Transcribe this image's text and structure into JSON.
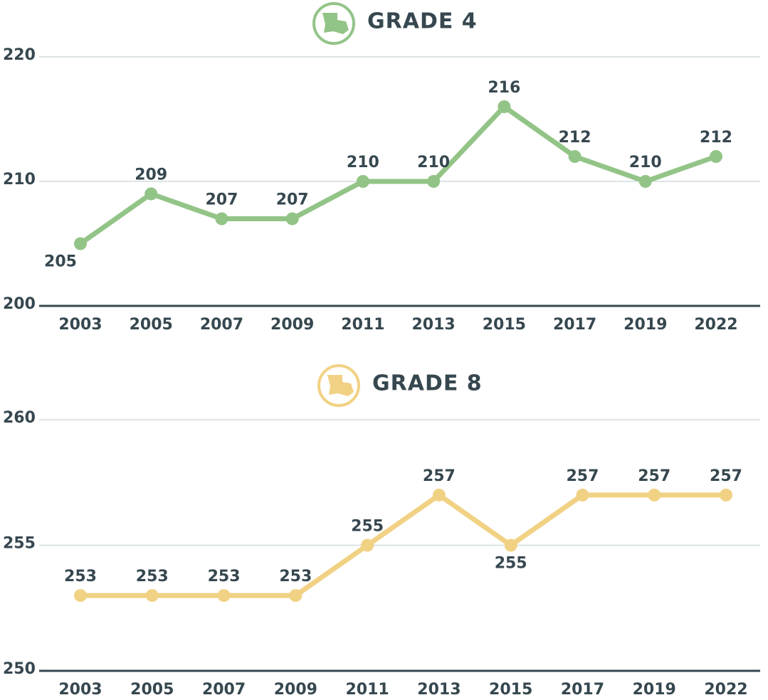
{
  "chart_data": [
    {
      "type": "line",
      "title": "GRADE 4",
      "categories": [
        "2003",
        "2005",
        "2007",
        "2009",
        "2011",
        "2013",
        "2015",
        "2017",
        "2019",
        "2022"
      ],
      "values": [
        205,
        209,
        207,
        207,
        210,
        210,
        216,
        212,
        210,
        212
      ],
      "color": "#93c487",
      "ylim": [
        200,
        220
      ],
      "yticks": [
        200,
        210,
        220
      ],
      "grid": true
    },
    {
      "type": "line",
      "title": "GRADE 8",
      "categories": [
        "2003",
        "2005",
        "2007",
        "2009",
        "2011",
        "2013",
        "2015",
        "2017",
        "2019",
        "2022"
      ],
      "values": [
        253,
        253,
        253,
        253,
        255,
        257,
        255,
        257,
        257,
        257
      ],
      "color": "#f1d183",
      "ylim": [
        250,
        260
      ],
      "yticks": [
        250,
        255,
        260
      ],
      "grid": true
    }
  ]
}
